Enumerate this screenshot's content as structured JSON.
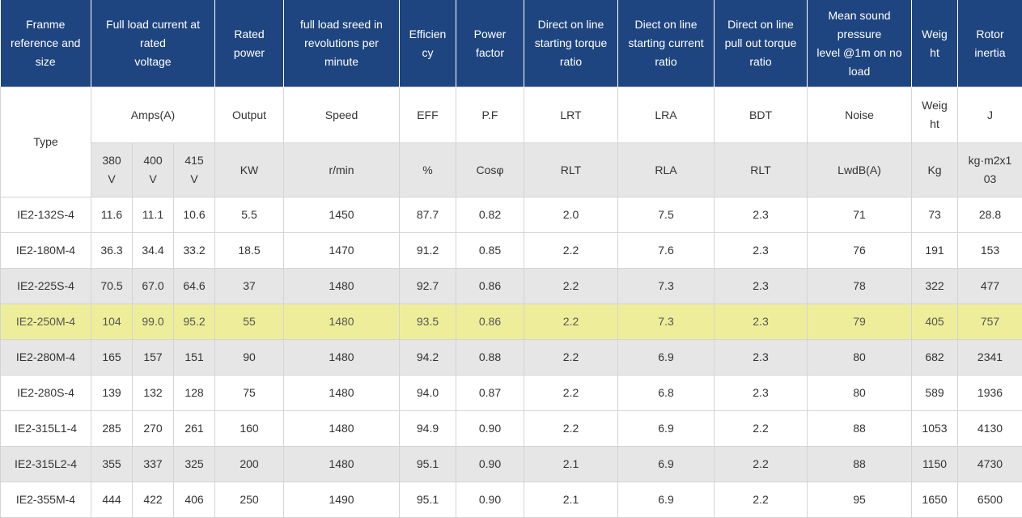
{
  "colors": {
    "header_bg": "#1f4580",
    "row_gray": "#e6e6e6",
    "row_highlight": "#eeee9a"
  },
  "headers": [
    "Franme\nreference and\nsize",
    "Full load current at\nrated\nvoltage",
    "Rated\npower",
    "full load sreed in\nrevolutions per\nminute",
    "Efficien\ncy",
    "Power\nfactor",
    "Direct on line\nstarting torque\nratio",
    "Diect on line\nstarting current\nratio",
    "Direct on line\npull out torque\nratio",
    "Mean sound\npressure\nlevel @1m on no\nload",
    "Weig\nht",
    "Rotor\ninertia"
  ],
  "sub1": {
    "type": "Type",
    "amps": "Amps(A)",
    "output": "Output",
    "speed": "Speed",
    "eff": "EFF",
    "pf": "P.F",
    "lrt": "LRT",
    "lra": "LRA",
    "bdt": "BDT",
    "noise": "Noise",
    "weight": "Weig\nht",
    "j": "J"
  },
  "sub2": [
    "380\nV",
    "400\nV",
    "415\nV",
    "KW",
    "r/min",
    "%",
    "Cosφ",
    "RLT",
    "RLA",
    "RLT",
    "LwdB(A)",
    "Kg",
    "kg·m2x1\n03"
  ],
  "rows": [
    {
      "style": "white",
      "cells": [
        "IE2-132S-4",
        "11.6",
        "11.1",
        "10.6",
        "5.5",
        "1450",
        "87.7",
        "0.82",
        "2.0",
        "7.5",
        "2.3",
        "71",
        "73",
        "28.8"
      ]
    },
    {
      "style": "white",
      "cells": [
        "IE2-180M-4",
        "36.3",
        "34.4",
        "33.2",
        "18.5",
        "1470",
        "91.2",
        "0.85",
        "2.2",
        "7.6",
        "2.3",
        "76",
        "191",
        "153"
      ]
    },
    {
      "style": "gray",
      "cells": [
        "IE2-225S-4",
        "70.5",
        "67.0",
        "64.6",
        "37",
        "1480",
        "92.7",
        "0.86",
        "2.2",
        "7.3",
        "2.3",
        "78",
        "322",
        "477"
      ]
    },
    {
      "style": "yellow",
      "cells": [
        "IE2-250M-4",
        "104",
        "99.0",
        "95.2",
        "55",
        "1480",
        "93.5",
        "0.86",
        "2.2",
        "7.3",
        "2.3",
        "79",
        "405",
        "757"
      ]
    },
    {
      "style": "gray",
      "cells": [
        "IE2-280M-4",
        "165",
        "157",
        "151",
        "90",
        "1480",
        "94.2",
        "0.88",
        "2.2",
        "6.9",
        "2.3",
        "80",
        "682",
        "2341"
      ]
    },
    {
      "style": "white",
      "cells": [
        "IE2-280S-4",
        "139",
        "132",
        "128",
        "75",
        "1480",
        "94.0",
        "0.87",
        "2.2",
        "6.8",
        "2.3",
        "80",
        "589",
        "1936"
      ]
    },
    {
      "style": "white",
      "cells": [
        "IE2-315L1-4",
        "285",
        "270",
        "261",
        "160",
        "1480",
        "94.9",
        "0.90",
        "2.2",
        "6.9",
        "2.2",
        "88",
        "1053",
        "4130"
      ]
    },
    {
      "style": "gray",
      "cells": [
        "IE2-315L2-4",
        "355",
        "337",
        "325",
        "200",
        "1480",
        "95.1",
        "0.90",
        "2.1",
        "6.9",
        "2.2",
        "88",
        "1150",
        "4730"
      ]
    },
    {
      "style": "white",
      "cells": [
        "IE2-355M-4",
        "444",
        "422",
        "406",
        "250",
        "1490",
        "95.1",
        "0.90",
        "2.1",
        "6.9",
        "2.2",
        "95",
        "1650",
        "6500"
      ]
    }
  ]
}
